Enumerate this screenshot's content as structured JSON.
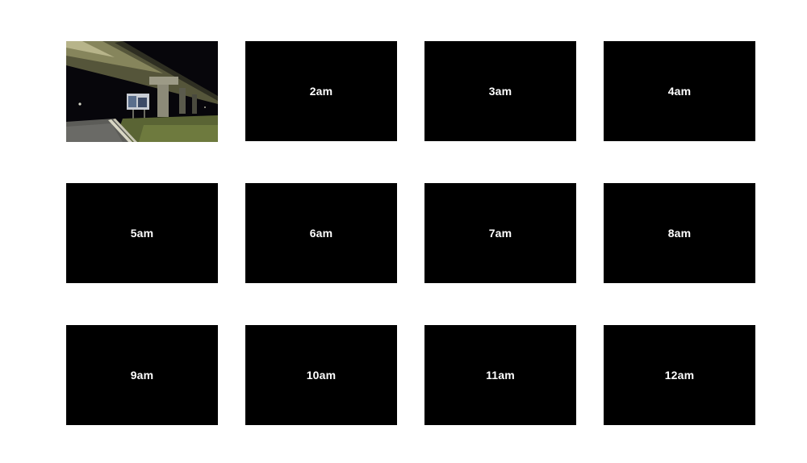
{
  "gallery": {
    "first_tile": {
      "type": "photo",
      "description_icon": "night-overpass-photo"
    },
    "tiles": [
      {
        "label": "2am"
      },
      {
        "label": "3am"
      },
      {
        "label": "4am"
      },
      {
        "label": "5am"
      },
      {
        "label": "6am"
      },
      {
        "label": "7am"
      },
      {
        "label": "8am"
      },
      {
        "label": "9am"
      },
      {
        "label": "10am"
      },
      {
        "label": "11am"
      },
      {
        "label": "12am"
      }
    ]
  },
  "colors": {
    "page_background": "#ffffff",
    "tile_background": "#000000",
    "label_text": "#ffffff"
  }
}
